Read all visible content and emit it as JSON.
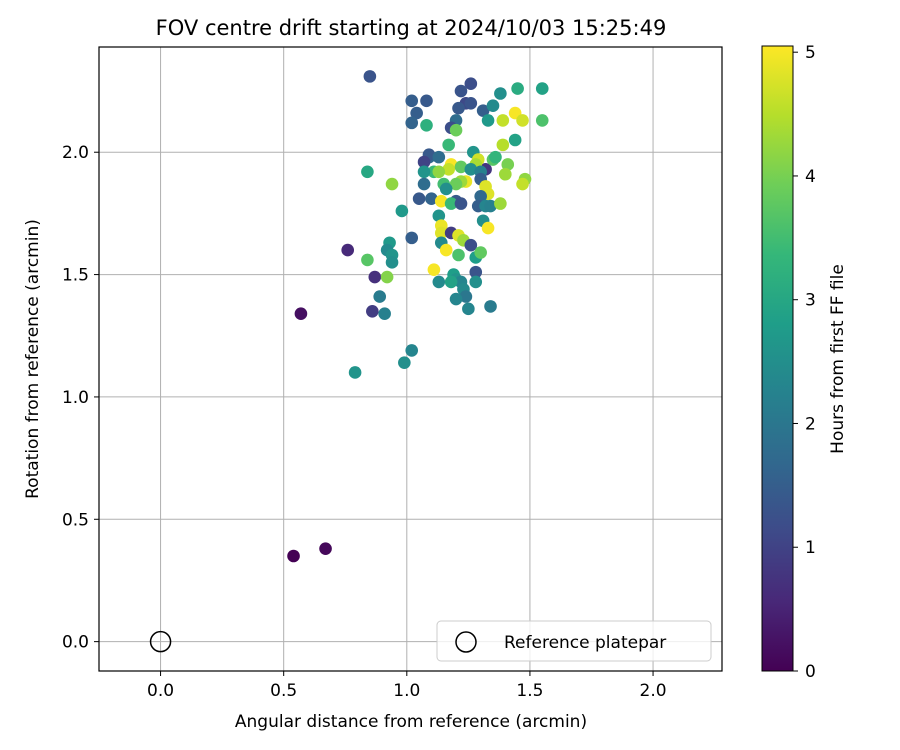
{
  "chart_data": {
    "type": "scatter",
    "title": "FOV centre drift starting at 2024/10/03 15:25:49",
    "xlabel": "Angular distance from reference (arcmin)",
    "ylabel": "Rotation from reference (arcmin)",
    "xlim": [
      -0.25,
      2.28
    ],
    "ylim": [
      -0.12,
      2.43
    ],
    "xticks": [
      0.0,
      0.5,
      1.0,
      1.5,
      2.0
    ],
    "xtick_labels": [
      "0.0",
      "0.5",
      "1.0",
      "1.5",
      "2.0"
    ],
    "yticks": [
      0.0,
      0.5,
      1.0,
      1.5,
      2.0
    ],
    "ytick_labels": [
      "0.0",
      "0.5",
      "1.0",
      "1.5",
      "2.0"
    ],
    "grid": true,
    "legend": {
      "position": "lower-right",
      "entries": [
        "Reference platepar"
      ]
    },
    "reference_point": {
      "x": 0.0,
      "y": 0.0
    },
    "colorbar": {
      "label": "Hours from first FF file",
      "range": [
        0,
        5.05
      ],
      "colormap": "viridis",
      "ticks": [
        0,
        1,
        2,
        3,
        4,
        5
      ],
      "tick_labels": [
        "0",
        "1",
        "2",
        "3",
        "4",
        "5"
      ]
    },
    "points": [
      {
        "x": 0.54,
        "y": 0.35,
        "c": 0.0
      },
      {
        "x": 0.67,
        "y": 0.38,
        "c": 0.1
      },
      {
        "x": 0.57,
        "y": 1.34,
        "c": 0.2
      },
      {
        "x": 0.76,
        "y": 1.6,
        "c": 0.6
      },
      {
        "x": 0.87,
        "y": 1.49,
        "c": 0.7
      },
      {
        "x": 0.86,
        "y": 1.35,
        "c": 0.9
      },
      {
        "x": 0.85,
        "y": 2.31,
        "c": 1.3
      },
      {
        "x": 1.02,
        "y": 2.21,
        "c": 1.5
      },
      {
        "x": 1.08,
        "y": 2.21,
        "c": 1.4
      },
      {
        "x": 1.04,
        "y": 2.16,
        "c": 1.5
      },
      {
        "x": 1.02,
        "y": 2.12,
        "c": 1.6
      },
      {
        "x": 1.02,
        "y": 1.65,
        "c": 1.5
      },
      {
        "x": 1.26,
        "y": 2.28,
        "c": 1.2
      },
      {
        "x": 1.22,
        "y": 2.25,
        "c": 1.3
      },
      {
        "x": 1.24,
        "y": 2.2,
        "c": 1.1
      },
      {
        "x": 1.21,
        "y": 2.18,
        "c": 1.4
      },
      {
        "x": 1.31,
        "y": 2.17,
        "c": 1.5
      },
      {
        "x": 1.26,
        "y": 2.2,
        "c": 1.3
      },
      {
        "x": 1.35,
        "y": 2.19,
        "c": 2.4
      },
      {
        "x": 1.38,
        "y": 2.24,
        "c": 2.5
      },
      {
        "x": 1.45,
        "y": 2.26,
        "c": 3.1
      },
      {
        "x": 1.55,
        "y": 2.26,
        "c": 2.9
      },
      {
        "x": 1.55,
        "y": 2.13,
        "c": 3.6
      },
      {
        "x": 1.33,
        "y": 2.13,
        "c": 2.7
      },
      {
        "x": 1.39,
        "y": 2.13,
        "c": 4.6
      },
      {
        "x": 1.44,
        "y": 2.16,
        "c": 5.0
      },
      {
        "x": 1.47,
        "y": 2.13,
        "c": 4.7
      },
      {
        "x": 1.2,
        "y": 2.13,
        "c": 1.8
      },
      {
        "x": 1.18,
        "y": 2.1,
        "c": 1.2
      },
      {
        "x": 1.08,
        "y": 2.11,
        "c": 3.2
      },
      {
        "x": 1.2,
        "y": 2.09,
        "c": 3.9
      },
      {
        "x": 1.44,
        "y": 2.05,
        "c": 2.9
      },
      {
        "x": 1.39,
        "y": 2.03,
        "c": 4.5
      },
      {
        "x": 1.17,
        "y": 2.03,
        "c": 3.4
      },
      {
        "x": 1.09,
        "y": 1.98,
        "c": 1.7
      },
      {
        "x": 1.09,
        "y": 1.99,
        "c": 1.4
      },
      {
        "x": 1.13,
        "y": 1.98,
        "c": 1.8
      },
      {
        "x": 1.07,
        "y": 1.96,
        "c": 1.0
      },
      {
        "x": 1.27,
        "y": 2.0,
        "c": 2.6
      },
      {
        "x": 1.32,
        "y": 1.93,
        "c": 0.8
      },
      {
        "x": 1.35,
        "y": 1.97,
        "c": 3.7
      },
      {
        "x": 1.36,
        "y": 1.98,
        "c": 3.3
      },
      {
        "x": 1.41,
        "y": 1.95,
        "c": 4.0
      },
      {
        "x": 1.29,
        "y": 1.97,
        "c": 4.7
      },
      {
        "x": 1.28,
        "y": 1.95,
        "c": 4.4
      },
      {
        "x": 1.18,
        "y": 1.95,
        "c": 5.0
      },
      {
        "x": 1.17,
        "y": 1.93,
        "c": 4.6
      },
      {
        "x": 1.22,
        "y": 1.94,
        "c": 3.8
      },
      {
        "x": 1.26,
        "y": 1.93,
        "c": 2.5
      },
      {
        "x": 1.3,
        "y": 1.92,
        "c": 2.2
      },
      {
        "x": 1.11,
        "y": 1.92,
        "c": 3.4
      },
      {
        "x": 1.13,
        "y": 1.92,
        "c": 4.2
      },
      {
        "x": 1.07,
        "y": 1.92,
        "c": 2.6
      },
      {
        "x": 0.84,
        "y": 1.92,
        "c": 3.0
      },
      {
        "x": 1.4,
        "y": 1.91,
        "c": 4.3
      },
      {
        "x": 1.48,
        "y": 1.89,
        "c": 4.2
      },
      {
        "x": 1.47,
        "y": 1.87,
        "c": 4.6
      },
      {
        "x": 1.24,
        "y": 1.88,
        "c": 4.9
      },
      {
        "x": 1.22,
        "y": 1.88,
        "c": 4.3
      },
      {
        "x": 1.3,
        "y": 1.89,
        "c": 1.5
      },
      {
        "x": 1.15,
        "y": 1.87,
        "c": 3.5
      },
      {
        "x": 1.2,
        "y": 1.87,
        "c": 3.9
      },
      {
        "x": 1.32,
        "y": 1.86,
        "c": 4.8
      },
      {
        "x": 0.94,
        "y": 1.87,
        "c": 4.2
      },
      {
        "x": 1.07,
        "y": 1.87,
        "c": 1.8
      },
      {
        "x": 1.16,
        "y": 1.85,
        "c": 2.5
      },
      {
        "x": 1.33,
        "y": 1.83,
        "c": 4.8
      },
      {
        "x": 1.3,
        "y": 1.82,
        "c": 1.7
      },
      {
        "x": 1.05,
        "y": 1.81,
        "c": 1.4
      },
      {
        "x": 1.1,
        "y": 1.81,
        "c": 1.6
      },
      {
        "x": 1.14,
        "y": 1.8,
        "c": 5.0
      },
      {
        "x": 1.2,
        "y": 1.8,
        "c": 1.4
      },
      {
        "x": 1.18,
        "y": 1.79,
        "c": 3.4
      },
      {
        "x": 1.22,
        "y": 1.79,
        "c": 1.3
      },
      {
        "x": 1.29,
        "y": 1.78,
        "c": 1.5
      },
      {
        "x": 1.32,
        "y": 1.78,
        "c": 2.3
      },
      {
        "x": 1.34,
        "y": 1.78,
        "c": 2.2
      },
      {
        "x": 1.38,
        "y": 1.79,
        "c": 4.3
      },
      {
        "x": 0.98,
        "y": 1.76,
        "c": 2.7
      },
      {
        "x": 1.13,
        "y": 1.74,
        "c": 2.6
      },
      {
        "x": 1.31,
        "y": 1.72,
        "c": 2.5
      },
      {
        "x": 1.33,
        "y": 1.69,
        "c": 5.0
      },
      {
        "x": 1.14,
        "y": 1.7,
        "c": 4.9
      },
      {
        "x": 1.14,
        "y": 1.67,
        "c": 4.8
      },
      {
        "x": 1.18,
        "y": 1.67,
        "c": 0.9
      },
      {
        "x": 1.21,
        "y": 1.66,
        "c": 4.8
      },
      {
        "x": 1.23,
        "y": 1.64,
        "c": 4.3
      },
      {
        "x": 1.14,
        "y": 1.63,
        "c": 2.4
      },
      {
        "x": 1.26,
        "y": 1.62,
        "c": 1.2
      },
      {
        "x": 0.93,
        "y": 1.63,
        "c": 2.7
      },
      {
        "x": 0.92,
        "y": 1.6,
        "c": 2.4
      },
      {
        "x": 0.94,
        "y": 1.58,
        "c": 2.6
      },
      {
        "x": 0.94,
        "y": 1.55,
        "c": 2.5
      },
      {
        "x": 0.84,
        "y": 1.56,
        "c": 3.7
      },
      {
        "x": 1.16,
        "y": 1.6,
        "c": 5.0
      },
      {
        "x": 1.21,
        "y": 1.58,
        "c": 3.6
      },
      {
        "x": 1.28,
        "y": 1.57,
        "c": 2.8
      },
      {
        "x": 1.3,
        "y": 1.59,
        "c": 3.8
      },
      {
        "x": 1.11,
        "y": 1.52,
        "c": 5.0
      },
      {
        "x": 1.28,
        "y": 1.51,
        "c": 1.3
      },
      {
        "x": 0.92,
        "y": 1.49,
        "c": 4.1
      },
      {
        "x": 1.19,
        "y": 1.5,
        "c": 2.8
      },
      {
        "x": 1.2,
        "y": 1.48,
        "c": 2.6
      },
      {
        "x": 1.22,
        "y": 1.47,
        "c": 2.3
      },
      {
        "x": 1.28,
        "y": 1.47,
        "c": 2.5
      },
      {
        "x": 1.13,
        "y": 1.47,
        "c": 2.4
      },
      {
        "x": 1.18,
        "y": 1.47,
        "c": 2.9
      },
      {
        "x": 1.23,
        "y": 1.44,
        "c": 2.4
      },
      {
        "x": 1.24,
        "y": 1.41,
        "c": 2.0
      },
      {
        "x": 1.2,
        "y": 1.4,
        "c": 2.3
      },
      {
        "x": 0.89,
        "y": 1.41,
        "c": 2.1
      },
      {
        "x": 1.25,
        "y": 1.36,
        "c": 2.3
      },
      {
        "x": 1.34,
        "y": 1.37,
        "c": 2.1
      },
      {
        "x": 0.91,
        "y": 1.34,
        "c": 2.2
      },
      {
        "x": 1.02,
        "y": 1.19,
        "c": 2.3
      },
      {
        "x": 0.99,
        "y": 1.14,
        "c": 2.5
      },
      {
        "x": 0.79,
        "y": 1.1,
        "c": 2.6
      }
    ]
  }
}
